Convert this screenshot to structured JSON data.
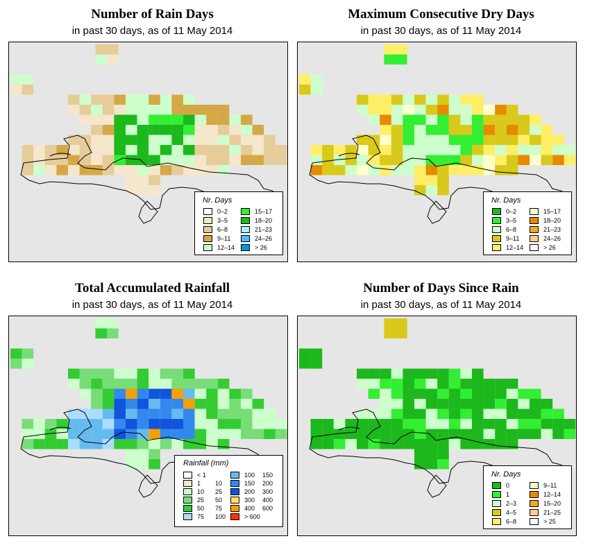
{
  "land_outline_color": "#000000",
  "sea_color": "#e6e6e6",
  "panels": [
    {
      "title": "Number of Rain Days",
      "subtitle": "in past 30 days, as of  11 May 2014",
      "legend_title": "Nr. Days",
      "legend": [
        {
          "label": "0–2",
          "color": "#ffffff"
        },
        {
          "label": "3–5",
          "color": "#f5e6cc"
        },
        {
          "label": "6–8",
          "color": "#e6cc99"
        },
        {
          "label": "9–11",
          "color": "#d4a847"
        },
        {
          "label": "12–14",
          "color": "#ccffcc"
        },
        {
          "label": "15–17",
          "color": "#33ee33"
        },
        {
          "label": "18–20",
          "color": "#1cb81c"
        },
        {
          "label": "21–23",
          "color": "#aaeeff"
        },
        {
          "label": "24–26",
          "color": "#55bbff"
        },
        {
          "label": "> 26",
          "color": "#0099dd"
        }
      ]
    },
    {
      "title": "Maximum Consecutive Dry Days",
      "subtitle": "in past 30 days, as of  11 May 2014",
      "legend_title": "Nr. Days",
      "legend": [
        {
          "label": "0–2",
          "color": "#1cb81c"
        },
        {
          "label": "3–5",
          "color": "#33ee33"
        },
        {
          "label": "6–8",
          "color": "#ccffcc"
        },
        {
          "label": "9–11",
          "color": "#d9c91a"
        },
        {
          "label": "12–14",
          "color": "#ffee66"
        },
        {
          "label": "15–17",
          "color": "#ffffcc"
        },
        {
          "label": "18–20",
          "color": "#e68a00"
        },
        {
          "label": "21–23",
          "color": "#f5a623"
        },
        {
          "label": "24–26",
          "color": "#ffcc99"
        },
        {
          "label": "> 26",
          "color": "#ffffff"
        }
      ]
    },
    {
      "title": "Total Accumulated Rainfall",
      "subtitle": "in past 30 days, as of  11 May 2014",
      "legend_title": "Rainfall (mm)",
      "legend": [
        {
          "label": "< 1",
          "label2": "",
          "color": "#ffffff"
        },
        {
          "label": "1",
          "label2": "10",
          "color": "#f5e6cc"
        },
        {
          "label": "10",
          "label2": "25",
          "color": "#ccffcc"
        },
        {
          "label": "25",
          "label2": "50",
          "color": "#77dd77"
        },
        {
          "label": "50",
          "label2": "75",
          "color": "#33cc33"
        },
        {
          "label": "75",
          "label2": "100",
          "color": "#aaddff"
        },
        {
          "label": "100",
          "label2": "150",
          "color": "#66bbee"
        },
        {
          "label": "150",
          "label2": "200",
          "color": "#3388ee"
        },
        {
          "label": "200",
          "label2": "300",
          "color": "#1155dd"
        },
        {
          "label": "300",
          "label2": "400",
          "color": "#ffe066"
        },
        {
          "label": "400",
          "label2": "600",
          "color": "#f5a000"
        },
        {
          "label": "> 600",
          "label2": "",
          "color": "#ff3300"
        }
      ]
    },
    {
      "title": "Number of Days Since Rain",
      "subtitle": "in past 30 days, as of  11 May 2014",
      "legend_title": "Nr. Days",
      "legend": [
        {
          "label": "0",
          "color": "#1cb81c"
        },
        {
          "label": "1",
          "color": "#33ee33"
        },
        {
          "label": "2–3",
          "color": "#ccffcc"
        },
        {
          "label": "4–5",
          "color": "#d9c91a"
        },
        {
          "label": "6–8",
          "color": "#ffee66"
        },
        {
          "label": "9–11",
          "color": "#ffffcc"
        },
        {
          "label": "12–14",
          "color": "#e68a00"
        },
        {
          "label": "15–20",
          "color": "#f5a623"
        },
        {
          "label": "21–25",
          "color": "#ffcc99"
        },
        {
          "label": "> 25",
          "color": "#ffffff"
        }
      ]
    }
  ]
}
